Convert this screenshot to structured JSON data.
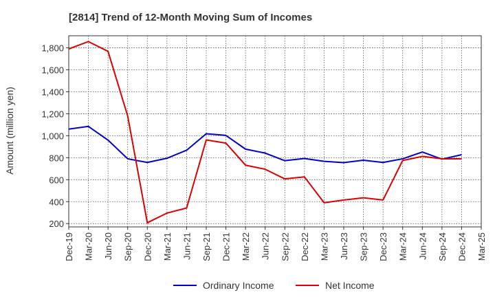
{
  "chart_data": {
    "type": "line",
    "title": "[2814]  Trend of 12-Month Moving Sum of Incomes",
    "ylabel": "Amount (million yen)",
    "xlabel": "",
    "ylim": [
      170,
      1910
    ],
    "yticks": [
      200,
      400,
      600,
      800,
      1000,
      1200,
      1400,
      1600,
      1800
    ],
    "ytick_labels": [
      "200",
      "400",
      "600",
      "800",
      "1,000",
      "1,200",
      "1,400",
      "1,600",
      "1,800"
    ],
    "categories": [
      "Dec-19",
      "Mar-20",
      "Jun-20",
      "Sep-20",
      "Dec-20",
      "Mar-21",
      "Jun-21",
      "Sep-21",
      "Dec-21",
      "Mar-22",
      "Jun-22",
      "Sep-22",
      "Dec-22",
      "Mar-23",
      "Jun-23",
      "Sep-23",
      "Dec-23",
      "Mar-24",
      "Jun-24",
      "Sep-24",
      "Dec-24",
      "Mar-25"
    ],
    "grid": true,
    "legend_position": "bottom",
    "series": [
      {
        "name": "Ordinary Income",
        "color": "#0000cc",
        "values": [
          1060,
          1085,
          960,
          790,
          757,
          795,
          868,
          1018,
          1003,
          878,
          842,
          773,
          793,
          767,
          755,
          777,
          757,
          790,
          852,
          787,
          827,
          null
        ]
      },
      {
        "name": "Net Income",
        "color": "#dd0000",
        "values": [
          1790,
          1857,
          1768,
          1180,
          208,
          296,
          342,
          962,
          933,
          732,
          695,
          607,
          625,
          390,
          415,
          435,
          415,
          775,
          812,
          790,
          790,
          null
        ]
      }
    ]
  }
}
